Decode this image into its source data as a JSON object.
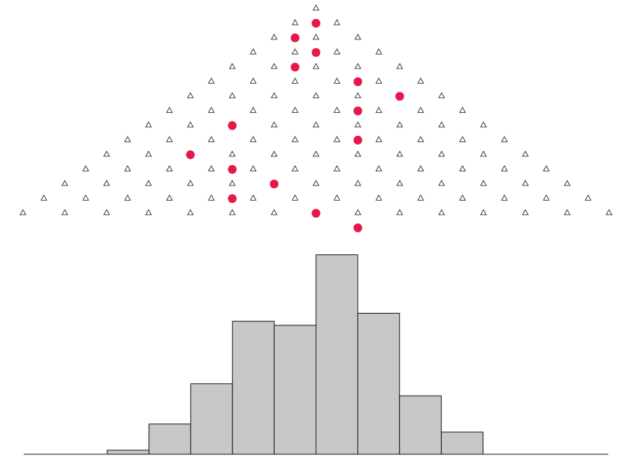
{
  "chart_data": [
    {
      "type": "scatter",
      "rows": 15,
      "pegs_per_row": [
        1,
        2,
        3,
        4,
        5,
        6,
        7,
        8,
        9,
        10,
        11,
        12,
        13,
        14,
        15
      ],
      "ball_path": [
        0,
        -0.5,
        0,
        -0.5,
        1,
        2,
        1,
        -2,
        1,
        -3,
        -2,
        -1,
        -2,
        0,
        1
      ],
      "ball_colors": [
        "#e8174a",
        "#e8174a",
        "#e8174a",
        "#e8174a",
        "#e8174a",
        "#e8174a",
        "#e8174a",
        "#e8174a",
        "#e8174a",
        "#e8174a",
        "#e8174a",
        "#e8174a",
        "#e8174a",
        "#e8174a",
        "#e8174a"
      ],
      "peg_color": "#222222",
      "grid": false
    },
    {
      "type": "bar",
      "bins": 14,
      "values": [
        0,
        0,
        2,
        15,
        35,
        66,
        64,
        99,
        70,
        29,
        11,
        0,
        0,
        0
      ],
      "ylim": [
        0,
        100
      ],
      "bar_color": "#c8c8c8",
      "edge_color": "#222222",
      "grid": false
    }
  ]
}
